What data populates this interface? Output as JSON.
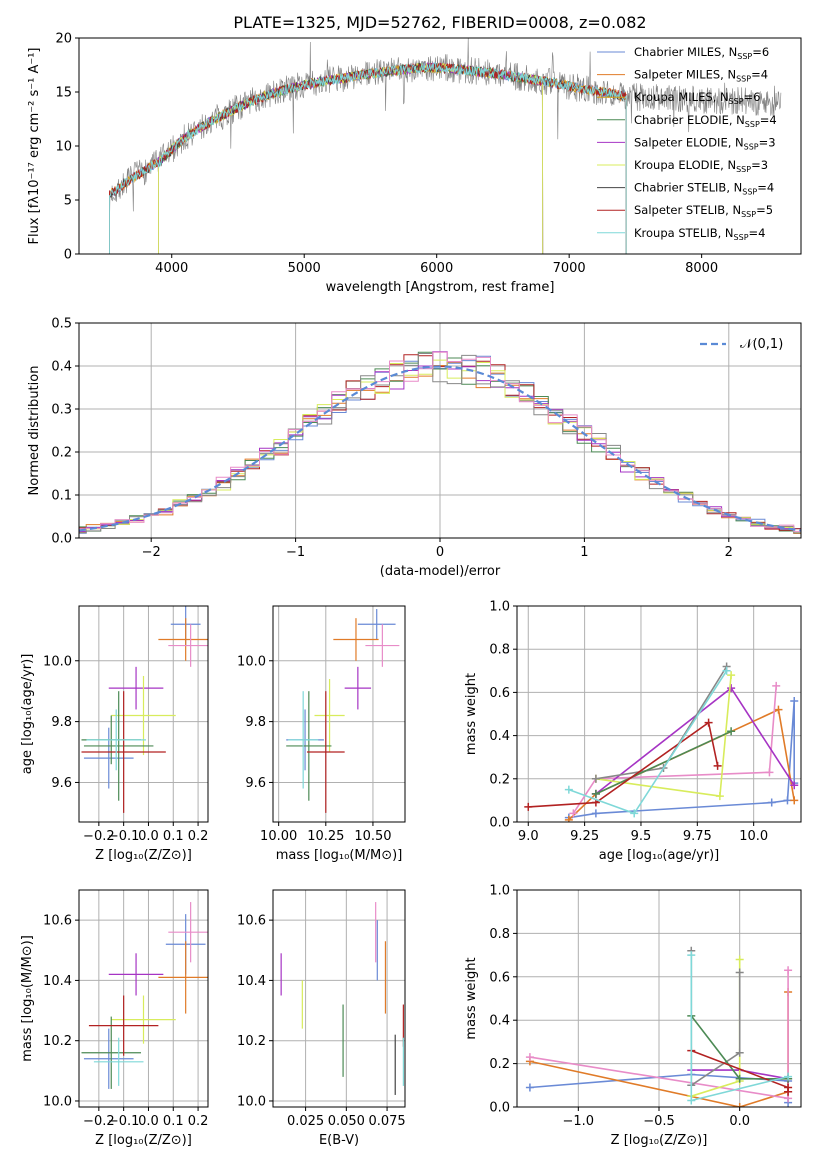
{
  "chart_data": [
    {
      "type": "line",
      "title": "PLATE=1325, MJD=52762, FIBERID=0008, z=0.082",
      "xlabel": "wavelength [Angstrom, rest frame]",
      "ylabel": "Flux [fλ10⁻¹⁷ erg cm⁻² s⁻¹ A⁻¹]",
      "xlim": [
        3300,
        8750
      ],
      "ylim": [
        0,
        20
      ],
      "xticks": [
        4000,
        5000,
        6000,
        7000,
        8000
      ],
      "yticks": [
        0,
        5,
        10,
        15,
        20
      ],
      "grid": false,
      "legend_position": "right",
      "continuum": {
        "x": [
          3500,
          3700,
          3900,
          4100,
          4300,
          4500,
          4700,
          4900,
          5100,
          5300,
          5500,
          5700,
          5900,
          6100,
          6300,
          6500,
          6700,
          6900,
          7100,
          7300,
          7420
        ],
        "y": [
          5.2,
          7.0,
          8.5,
          10.8,
          12.3,
          13.6,
          14.6,
          15.4,
          15.9,
          16.3,
          16.7,
          17.0,
          17.3,
          17.2,
          16.9,
          16.6,
          16.2,
          15.8,
          15.3,
          14.9,
          14.6
        ]
      },
      "data_spectrum": {
        "name": "data",
        "color": "#808080",
        "x_range": [
          3530,
          8600
        ],
        "noise_sigma": 1.3
      },
      "series": [
        {
          "name": "Chabrier MILES, N",
          "sub": "SSP",
          "suffix": "=6",
          "color": "#6a8ad6",
          "x_range": [
            3530,
            7430
          ]
        },
        {
          "name": "Salpeter MILES, N",
          "sub": "SSP",
          "suffix": "=4",
          "color": "#e07b28",
          "x_range": [
            3530,
            7430
          ]
        },
        {
          "name": "Kroupa MILES, N",
          "sub": "SSP",
          "suffix": "=6",
          "color": "#d4a017",
          "x_range": [
            3530,
            7430
          ]
        },
        {
          "name": "Chabrier ELODIE, N",
          "sub": "SSP",
          "suffix": "=4",
          "color": "#4c8a55",
          "x_range": [
            3900,
            6800
          ]
        },
        {
          "name": "Salpeter ELODIE, N",
          "sub": "SSP",
          "suffix": "=3",
          "color": "#a634c4",
          "x_range": [
            3900,
            6800
          ]
        },
        {
          "name": "Kroupa ELODIE, N",
          "sub": "SSP",
          "suffix": "=3",
          "color": "#d8ec5c",
          "x_range": [
            3900,
            6800
          ]
        },
        {
          "name": "Chabrier STELIB, N",
          "sub": "SSP",
          "suffix": "=4",
          "color": "#444444",
          "x_range": [
            3530,
            7430
          ]
        },
        {
          "name": "Salpeter STELIB, N",
          "sub": "SSP",
          "suffix": "=5",
          "color": "#b22222",
          "x_range": [
            3530,
            7430
          ]
        },
        {
          "name": "Kroupa STELIB, N",
          "sub": "SSP",
          "suffix": "=4",
          "color": "#7fd8d8",
          "x_range": [
            3530,
            7430
          ]
        }
      ]
    },
    {
      "type": "line",
      "xlabel": "(data-model)/error",
      "ylabel": "Normed distribution",
      "xlim": [
        -2.5,
        2.5
      ],
      "ylim": [
        0,
        0.5
      ],
      "xticks": [
        -2,
        -1,
        0,
        1,
        2
      ],
      "yticks": [
        0.0,
        0.1,
        0.2,
        0.3,
        0.4,
        0.5
      ],
      "grid": true,
      "legend": "𝒩(0,1)",
      "legend_position": "top-right",
      "bin_width": 0.1,
      "histogram_colors": [
        "#6a8ad6",
        "#e07b28",
        "#4c8a55",
        "#b22222",
        "#a634c4",
        "#d8ec5c",
        "#888888",
        "#e88cc8"
      ]
    },
    {
      "type": "scatter",
      "xlabel": "Z [log₁₀(Z/Z⊙)]",
      "ylabel": "age  [log₁₀(age/yr)]",
      "xlim": [
        -0.28,
        0.24
      ],
      "ylim": [
        9.47,
        10.18
      ],
      "xticks": [
        -0.2,
        -0.1,
        0.0,
        0.1,
        0.2
      ],
      "yticks": [
        9.6,
        9.8,
        10.0
      ],
      "grid": true,
      "points": [
        {
          "x": 0.15,
          "xerr": 0.06,
          "y": 10.12,
          "yerr": 0.07,
          "color": "#6a8ad6"
        },
        {
          "x": 0.15,
          "xerr": 0.11,
          "y": 10.07,
          "yerr": 0.07,
          "color": "#e07b28"
        },
        {
          "x": 0.17,
          "xerr": 0.09,
          "y": 10.05,
          "yerr": 0.07,
          "color": "#e88cc8"
        },
        {
          "x": -0.05,
          "xerr": 0.11,
          "y": 9.91,
          "yerr": 0.07,
          "color": "#a634c4"
        },
        {
          "x": -0.02,
          "xerr": 0.13,
          "y": 9.82,
          "yerr": 0.13,
          "color": "#d8ec5c"
        },
        {
          "x": -0.16,
          "xerr": 0.1,
          "y": 9.68,
          "yerr": 0.1,
          "color": "#6a8ad6"
        },
        {
          "x": -0.15,
          "xerr": 0.12,
          "y": 9.74,
          "yerr": 0.08,
          "color": "#4c8a55"
        },
        {
          "x": -0.12,
          "xerr": 0.14,
          "y": 9.72,
          "yerr": 0.18,
          "color": "#4c8a55"
        },
        {
          "x": -0.1,
          "xerr": 0.17,
          "y": 9.7,
          "yerr": 0.2,
          "color": "#b22222"
        },
        {
          "x": -0.13,
          "xerr": 0.12,
          "y": 9.74,
          "yerr": 0.1,
          "color": "#7fd8d8"
        }
      ]
    },
    {
      "type": "scatter",
      "xlabel": "mass [log₁₀(M/M⊙)]",
      "ylabel": "",
      "xlim": [
        9.97,
        10.67
      ],
      "ylim": [
        9.47,
        10.18
      ],
      "xticks": [
        10.0,
        10.25,
        10.5
      ],
      "yticks": [
        9.6,
        9.8,
        10.0
      ],
      "grid": true,
      "points": [
        {
          "x": 10.52,
          "xerr": 0.1,
          "y": 10.12,
          "yerr": 0.05,
          "color": "#6a8ad6"
        },
        {
          "x": 10.41,
          "xerr": 0.12,
          "y": 10.07,
          "yerr": 0.07,
          "color": "#e07b28"
        },
        {
          "x": 10.55,
          "xerr": 0.09,
          "y": 10.05,
          "yerr": 0.07,
          "color": "#e88cc8"
        },
        {
          "x": 10.42,
          "xerr": 0.07,
          "y": 9.91,
          "yerr": 0.07,
          "color": "#a634c4"
        },
        {
          "x": 10.27,
          "xerr": 0.08,
          "y": 9.82,
          "yerr": 0.12,
          "color": "#d8ec5c"
        },
        {
          "x": 10.14,
          "xerr": 0.1,
          "y": 9.74,
          "yerr": 0.1,
          "color": "#6a8ad6"
        },
        {
          "x": 10.16,
          "xerr": 0.12,
          "y": 9.72,
          "yerr": 0.18,
          "color": "#4c8a55"
        },
        {
          "x": 10.25,
          "xerr": 0.1,
          "y": 9.7,
          "yerr": 0.2,
          "color": "#b22222"
        },
        {
          "x": 10.13,
          "xerr": 0.08,
          "y": 9.74,
          "yerr": 0.16,
          "color": "#7fd8d8"
        }
      ]
    },
    {
      "type": "line",
      "xlabel": "age  [log₁₀(age/yr)]",
      "ylabel": "mass weight",
      "xlim": [
        8.95,
        10.21
      ],
      "ylim": [
        0,
        1.0
      ],
      "xticks": [
        9.0,
        9.25,
        9.5,
        9.75,
        10.0
      ],
      "yticks": [
        0.0,
        0.2,
        0.4,
        0.6,
        0.8,
        1.0
      ],
      "grid": true,
      "series": [
        {
          "color": "#6a8ad6",
          "x": [
            9.18,
            9.3,
            10.08,
            10.15,
            10.18,
            10.18
          ],
          "y": [
            0.02,
            0.04,
            0.09,
            0.1,
            0.56,
            0.18
          ]
        },
        {
          "color": "#e07b28",
          "x": [
            9.18,
            9.3,
            10.11,
            10.18
          ],
          "y": [
            0.01,
            0.13,
            0.52,
            0.1
          ]
        },
        {
          "color": "#e88cc8",
          "x": [
            9.2,
            9.3,
            10.07,
            10.1
          ],
          "y": [
            0.04,
            0.2,
            0.23,
            0.63
          ]
        },
        {
          "color": "#a634c4",
          "x": [
            9.3,
            9.9,
            10.18
          ],
          "y": [
            0.13,
            0.62,
            0.17
          ]
        },
        {
          "color": "#d8ec5c",
          "x": [
            9.3,
            9.85,
            9.9
          ],
          "y": [
            0.2,
            0.12,
            0.68
          ]
        },
        {
          "color": "#888888",
          "x": [
            9.3,
            9.6,
            9.88
          ],
          "y": [
            0.2,
            0.25,
            0.72
          ]
        },
        {
          "color": "#4c8a55",
          "x": [
            9.3,
            9.9
          ],
          "y": [
            0.13,
            0.42
          ]
        },
        {
          "color": "#b22222",
          "x": [
            9.0,
            9.3,
            9.8,
            9.84
          ],
          "y": [
            0.07,
            0.09,
            0.46,
            0.26
          ]
        },
        {
          "color": "#7fd8d8",
          "x": [
            9.18,
            9.47,
            9.88
          ],
          "y": [
            0.15,
            0.04,
            0.7
          ]
        }
      ]
    },
    {
      "type": "scatter",
      "xlabel": "Z [log₁₀(Z/Z⊙)]",
      "ylabel": "mass [log₁₀(M/M⊙)]",
      "xlim": [
        -0.28,
        0.24
      ],
      "ylim": [
        9.98,
        10.7
      ],
      "xticks": [
        -0.2,
        -0.1,
        0.0,
        0.1,
        0.2
      ],
      "yticks": [
        10.0,
        10.2,
        10.4,
        10.6
      ],
      "grid": true,
      "points": [
        {
          "x": 0.15,
          "xerr": 0.08,
          "y": 10.52,
          "yerr": 0.1,
          "color": "#6a8ad6"
        },
        {
          "x": 0.15,
          "xerr": 0.11,
          "y": 10.41,
          "yerr": 0.12,
          "color": "#e07b28"
        },
        {
          "x": 0.17,
          "xerr": 0.09,
          "y": 10.56,
          "yerr": 0.1,
          "color": "#e88cc8"
        },
        {
          "x": -0.05,
          "xerr": 0.11,
          "y": 10.42,
          "yerr": 0.07,
          "color": "#a634c4"
        },
        {
          "x": -0.02,
          "xerr": 0.13,
          "y": 10.27,
          "yerr": 0.08,
          "color": "#d8ec5c"
        },
        {
          "x": -0.16,
          "xerr": 0.1,
          "y": 10.14,
          "yerr": 0.1,
          "color": "#6a8ad6"
        },
        {
          "x": -0.15,
          "xerr": 0.12,
          "y": 10.16,
          "yerr": 0.12,
          "color": "#4c8a55"
        },
        {
          "x": -0.1,
          "xerr": 0.14,
          "y": 10.25,
          "yerr": 0.1,
          "color": "#b22222"
        },
        {
          "x": -0.12,
          "xerr": 0.1,
          "y": 10.13,
          "yerr": 0.08,
          "color": "#7fd8d8"
        }
      ]
    },
    {
      "type": "scatter",
      "xlabel": "E(B-V)",
      "ylabel": "",
      "xlim": [
        0.005,
        0.086
      ],
      "ylim": [
        9.98,
        10.7
      ],
      "xticks": [
        0.025,
        0.05,
        0.075
      ],
      "xtick_labels": [
        "0.025",
        "0.050",
        "0.075"
      ],
      "yticks": [
        10.0,
        10.2,
        10.4,
        10.6
      ],
      "grid": true,
      "points": [
        {
          "x": 0.01,
          "y": 10.42,
          "yerr": 0.07,
          "color": "#a634c4"
        },
        {
          "x": 0.023,
          "y": 10.32,
          "yerr": 0.08,
          "color": "#d8ec5c"
        },
        {
          "x": 0.048,
          "y": 10.2,
          "yerr": 0.12,
          "color": "#4c8a55"
        },
        {
          "x": 0.068,
          "y": 10.56,
          "yerr": 0.1,
          "color": "#e88cc8"
        },
        {
          "x": 0.069,
          "y": 10.5,
          "yerr": 0.1,
          "color": "#6a8ad6"
        },
        {
          "x": 0.074,
          "y": 10.41,
          "yerr": 0.12,
          "color": "#e07b28"
        },
        {
          "x": 0.08,
          "y": 10.12,
          "yerr": 0.1,
          "color": "#444444"
        },
        {
          "x": 0.085,
          "y": 10.25,
          "yerr": 0.07,
          "color": "#b22222"
        },
        {
          "x": 0.085,
          "y": 10.13,
          "yerr": 0.08,
          "color": "#7fd8d8"
        }
      ]
    },
    {
      "type": "line",
      "xlabel": "Z [log₁₀(Z/Z⊙)]",
      "ylabel": "mass weight",
      "xlim": [
        -1.38,
        0.38
      ],
      "ylim": [
        0,
        1.0
      ],
      "xticks": [
        -1.0,
        -0.5,
        0.0
      ],
      "xtick_labels": [
        "−1.0",
        "−0.5",
        "0.0"
      ],
      "yticks": [
        0.0,
        0.2,
        0.4,
        0.6,
        0.8,
        1.0
      ],
      "grid": true,
      "series": [
        {
          "color": "#6a8ad6",
          "x": [
            -1.3,
            -0.3,
            0.3,
            0.3
          ],
          "y": [
            0.09,
            0.15,
            0.12,
            0.02
          ]
        },
        {
          "color": "#e07b28",
          "x": [
            -1.3,
            0.0,
            0.3,
            0.3
          ],
          "y": [
            0.21,
            0.0,
            0.07,
            0.53
          ]
        },
        {
          "color": "#e88cc8",
          "x": [
            -1.3,
            0.3,
            0.3
          ],
          "y": [
            0.23,
            0.04,
            0.63
          ]
        },
        {
          "color": "#a634c4",
          "x": [
            -0.3,
            0.0,
            0.3
          ],
          "y": [
            0.17,
            0.17,
            0.13
          ]
        },
        {
          "color": "#d8ec5c",
          "x": [
            -0.3,
            0.0,
            0.0
          ],
          "y": [
            0.05,
            0.12,
            0.68
          ]
        },
        {
          "color": "#888888",
          "x": [
            -0.3,
            -0.3,
            0.0,
            0.0
          ],
          "y": [
            0.72,
            0.1,
            0.25,
            0.62
          ]
        },
        {
          "color": "#4c8a55",
          "x": [
            -0.3,
            0.0,
            0.3
          ],
          "y": [
            0.42,
            0.13,
            0.13
          ]
        },
        {
          "color": "#b22222",
          "x": [
            -0.3,
            0.3,
            0.3
          ],
          "y": [
            0.26,
            0.09,
            0.07
          ]
        },
        {
          "color": "#7fd8d8",
          "x": [
            -0.3,
            -0.3,
            0.3
          ],
          "y": [
            0.7,
            0.03,
            0.14
          ]
        }
      ]
    }
  ]
}
